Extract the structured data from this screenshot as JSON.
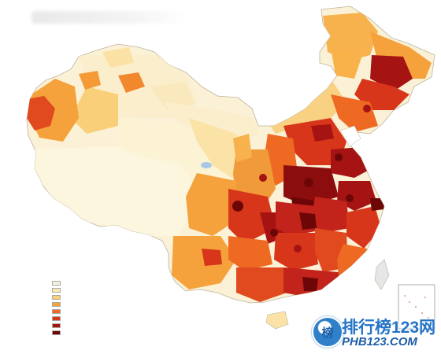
{
  "map": {
    "title": "",
    "legend": [
      {
        "label": "",
        "color": "#f7f0dc"
      },
      {
        "label": "",
        "color": "#fbe8b0"
      },
      {
        "label": "",
        "color": "#f9cf7a"
      },
      {
        "label": "",
        "color": "#f5a23c"
      },
      {
        "label": "",
        "color": "#ee6a22"
      },
      {
        "label": "",
        "color": "#d8361a"
      },
      {
        "label": "",
        "color": "#a51313"
      },
      {
        "label": "",
        "color": "#6d0707"
      }
    ],
    "source_note": ""
  },
  "watermark": {
    "badge": "榜",
    "title": "排行榜123网",
    "url": "PHB123.COM"
  }
}
